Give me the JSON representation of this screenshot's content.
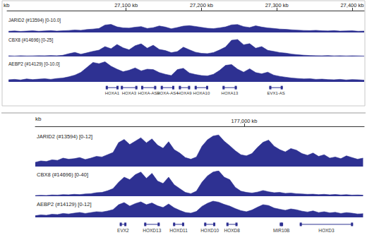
{
  "chart_data": [
    {
      "type": "area",
      "xlabel": "kb",
      "tick_labels": "x",
      "grid": false,
      "xlim": [
        26942,
        27416
      ],
      "xticks": [
        {
          "value": 27100,
          "label": "27,100 kb"
        },
        {
          "value": 27200,
          "label": "27,200 kb"
        },
        {
          "value": 27300,
          "label": "27,300 kb"
        },
        {
          "value": 27400,
          "label": "27,400 kb"
        }
      ],
      "x": [
        26944,
        26952,
        26960,
        26968,
        26976,
        26984,
        26992,
        27000,
        27008,
        27016,
        27024,
        27032,
        27040,
        27048,
        27056,
        27064,
        27072,
        27080,
        27088,
        27096,
        27104,
        27112,
        27120,
        27128,
        27136,
        27144,
        27152,
        27160,
        27168,
        27176,
        27184,
        27192,
        27200,
        27208,
        27216,
        27224,
        27232,
        27240,
        27248,
        27256,
        27264,
        27272,
        27280,
        27288,
        27296,
        27304,
        27312,
        27320,
        27328,
        27336,
        27344,
        27352,
        27360,
        27368,
        27376,
        27384,
        27392,
        27400,
        27408,
        27416
      ],
      "series": [
        {
          "name": "JARID2 (#13594) [0-10.0]",
          "color": "#2e3192",
          "ylim": [
            0,
            10
          ],
          "values": [
            0.8,
            1.0,
            0.7,
            0.9,
            1.1,
            0.8,
            1.0,
            1.2,
            0.9,
            1.1,
            1.3,
            1.6,
            1.4,
            1.9,
            2.2,
            2.6,
            4.8,
            5.2,
            3.6,
            3.0,
            2.8,
            3.4,
            3.8,
            2.6,
            3.1,
            4.2,
            3.5,
            2.4,
            3.2,
            4.1,
            4.4,
            3.9,
            3.3,
            2.7,
            2.5,
            3.0,
            3.6,
            4.9,
            5.1,
            3.8,
            3.2,
            4.3,
            3.5,
            2.9,
            2.6,
            2.2,
            2.0,
            1.7,
            1.5,
            1.3,
            1.2,
            1.4,
            1.1,
            1.0,
            1.2,
            0.9,
            1.0,
            1.1,
            0.8,
            0.9
          ]
        },
        {
          "name": "CBX8 (#14696) [0-25]",
          "color": "#2e3192",
          "ylim": [
            0,
            25
          ],
          "values": [
            0.8,
            0.5,
            0.9,
            0.6,
            0.7,
            1.0,
            0.8,
            1.2,
            0.9,
            1.5,
            3.5,
            5.2,
            2.8,
            4.6,
            6.5,
            8.0,
            12.5,
            9.8,
            15.2,
            11.0,
            8.4,
            13.6,
            16.0,
            10.5,
            14.2,
            9.0,
            7.5,
            4.8,
            6.2,
            11.8,
            8.5,
            5.4,
            4.0,
            3.6,
            5.0,
            8.2,
            12.0,
            20.5,
            21.5,
            14.8,
            16.2,
            10.4,
            12.5,
            7.8,
            6.4,
            5.0,
            4.2,
            3.0,
            2.2,
            1.6,
            1.2,
            1.0,
            0.8,
            1.1,
            0.7,
            0.9,
            0.6,
            0.8,
            0.7,
            0.5
          ]
        },
        {
          "name": "AEBP2 (#14129) [0-10.0]",
          "color": "#2e3192",
          "ylim": [
            0,
            10
          ],
          "values": [
            1.0,
            1.2,
            0.9,
            1.4,
            1.1,
            1.3,
            1.5,
            1.2,
            1.6,
            1.8,
            2.4,
            3.2,
            4.5,
            6.8,
            9.2,
            8.6,
            9.5,
            7.4,
            6.0,
            4.8,
            5.5,
            6.6,
            5.2,
            6.0,
            5.8,
            4.4,
            3.6,
            3.0,
            5.8,
            6.4,
            4.2,
            3.5,
            3.0,
            2.8,
            3.6,
            5.4,
            7.8,
            8.2,
            6.0,
            4.6,
            6.2,
            4.4,
            3.8,
            4.6,
            3.2,
            2.6,
            2.2,
            1.8,
            1.6,
            1.4,
            1.5,
            1.2,
            1.3,
            1.1,
            1.0,
            1.2,
            0.9,
            1.1,
            1.0,
            0.8
          ]
        }
      ],
      "genes": [
        {
          "label": "HOXA1",
          "start": 27073,
          "end": 27090
        },
        {
          "label": "HOXA3",
          "start": 27093,
          "end": 27115
        },
        {
          "label": "HOXA-AS3",
          "start": 27120,
          "end": 27140
        },
        {
          "label": "HOXA-AS4",
          "start": 27146,
          "end": 27164
        },
        {
          "label": "HOXA9",
          "start": 27170,
          "end": 27185
        },
        {
          "label": "HOXA10",
          "start": 27191,
          "end": 27209
        },
        {
          "label": "HOXA13",
          "start": 27228,
          "end": 27247
        },
        {
          "label": "EVX1-AS",
          "start": 27290,
          "end": 27308
        }
      ]
    },
    {
      "type": "area",
      "xlabel": "kb",
      "tick_labels": "x",
      "grid": false,
      "xlim": [
        176906,
        177054
      ],
      "xticks": [
        {
          "value": 177000,
          "label": "177,000 kb"
        }
      ],
      "x": [
        176906,
        176908.5,
        176911,
        176913.5,
        176916,
        176918.5,
        176921,
        176923.5,
        176926,
        176928.5,
        176931,
        176933.5,
        176936,
        176938.5,
        176941,
        176943.5,
        176946,
        176948.5,
        176951,
        176953.5,
        176956,
        176958.5,
        176961,
        176963.5,
        176966,
        176968.5,
        176971,
        176973.5,
        176976,
        176978.5,
        176981,
        176983.5,
        176986,
        176988.5,
        176991,
        176993.5,
        176996,
        176998.5,
        177001,
        177003.5,
        177006,
        177008.5,
        177011,
        177013.5,
        177016,
        177018.5,
        177021,
        177023.5,
        177026,
        177028.5,
        177031,
        177033.5,
        177036,
        177038.5,
        177041,
        177043.5,
        177046,
        177048.5,
        177051,
        177053.5
      ],
      "series": [
        {
          "name": "JARID2 (#13594) [0-12]",
          "color": "#2e3192",
          "ylim": [
            0,
            12
          ],
          "values": [
            1.5,
            2.0,
            1.8,
            2.4,
            2.2,
            3.0,
            2.6,
            2.8,
            3.2,
            2.5,
            3.0,
            3.6,
            3.4,
            4.2,
            5.0,
            8.5,
            9.6,
            7.8,
            9.0,
            10.2,
            8.4,
            9.8,
            7.6,
            6.5,
            8.8,
            6.0,
            4.8,
            3.2,
            2.6,
            3.4,
            7.2,
            9.5,
            10.8,
            11.2,
            9.0,
            7.4,
            5.6,
            4.2,
            3.8,
            4.6,
            6.8,
            8.6,
            9.4,
            7.2,
            6.0,
            5.2,
            6.4,
            5.8,
            4.6,
            4.0,
            4.8,
            3.6,
            4.2,
            3.0,
            3.4,
            2.8,
            3.8,
            3.2,
            2.6,
            3.0
          ]
        },
        {
          "name": "CBX8 (#14696) [0-40]",
          "color": "#2e3192",
          "ylim": [
            0,
            40
          ],
          "values": [
            1.0,
            1.5,
            1.2,
            2.0,
            1.8,
            2.5,
            2.2,
            3.0,
            2.6,
            3.5,
            4.0,
            5.5,
            6.0,
            8.5,
            12.0,
            22.0,
            30.0,
            26.0,
            34.0,
            38.0,
            28.0,
            36.0,
            24.0,
            20.0,
            30.0,
            18.0,
            12.0,
            6.0,
            4.0,
            8.0,
            22.0,
            32.0,
            38.0,
            40.0,
            30.0,
            26.0,
            14.0,
            8.0,
            6.0,
            5.0,
            6.5,
            9.0,
            7.0,
            5.5,
            6.0,
            4.5,
            5.0,
            4.0,
            3.5,
            3.0,
            3.2,
            2.5,
            3.0,
            2.2,
            2.8,
            2.0,
            2.4,
            1.8,
            2.0,
            1.6
          ]
        },
        {
          "name": "AEBP2 (#14129) [0-12]",
          "color": "#2e3192",
          "ylim": [
            0,
            12
          ],
          "values": [
            1.2,
            1.8,
            1.5,
            2.2,
            2.0,
            2.8,
            2.4,
            3.0,
            3.5,
            2.8,
            3.4,
            4.0,
            3.8,
            4.5,
            5.5,
            9.0,
            10.5,
            8.0,
            9.8,
            11.0,
            9.0,
            10.2,
            8.2,
            7.0,
            9.5,
            6.8,
            5.0,
            3.5,
            3.0,
            4.2,
            7.8,
            10.0,
            11.5,
            10.8,
            9.2,
            8.0,
            6.2,
            4.8,
            4.0,
            5.2,
            7.2,
            9.0,
            8.4,
            6.6,
            5.8,
            5.0,
            6.0,
            5.4,
            4.4,
            3.8,
            4.6,
            3.4,
            4.0,
            3.2,
            3.6,
            2.8,
            3.4,
            3.0,
            2.4,
            2.6
          ]
        }
      ],
      "genes": [
        {
          "label": "EVX2",
          "start": 176944,
          "end": 176947
        },
        {
          "label": "HOXD13",
          "start": 176955,
          "end": 176962
        },
        {
          "label": "HOXD11",
          "start": 176968,
          "end": 176973
        },
        {
          "label": "HOXD10",
          "start": 176982,
          "end": 176987
        },
        {
          "label": "HOXD8",
          "start": 176992,
          "end": 176997
        },
        {
          "label": "MIR10B",
          "start": 177016,
          "end": 177017.5
        },
        {
          "label": "HOXD3",
          "start": 177025,
          "end": 177049
        }
      ]
    }
  ]
}
